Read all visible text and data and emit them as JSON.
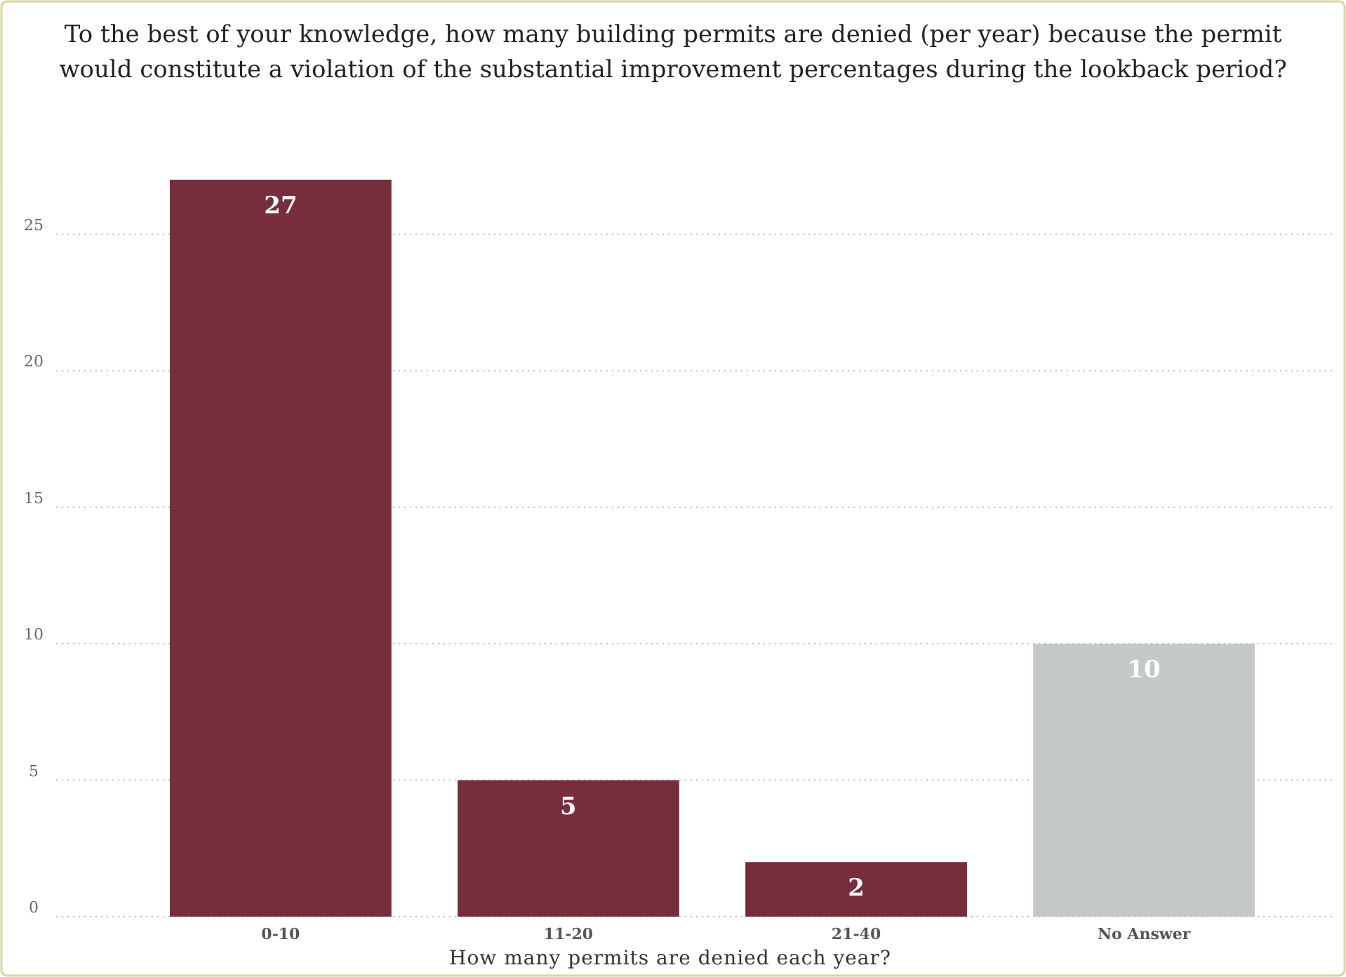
{
  "chart_data": {
    "type": "bar",
    "title": "To the best of your knowledge, how many building permits are denied (per year) because the permit would constitute a violation of the substantial improvement percentages during the lookback period?",
    "xlabel": "How many permits are denied each year?",
    "categories": [
      "0-10",
      "11-20",
      "21-40",
      "No Answer"
    ],
    "values": [
      27,
      5,
      2,
      10
    ],
    "colors": [
      "#772d3c",
      "#772d3c",
      "#772d3c",
      "#c4c8c8"
    ],
    "ylim": [
      0,
      27
    ],
    "yticks": [
      0,
      5,
      10,
      15,
      20,
      25
    ],
    "grid": "y",
    "data_labels": true
  }
}
